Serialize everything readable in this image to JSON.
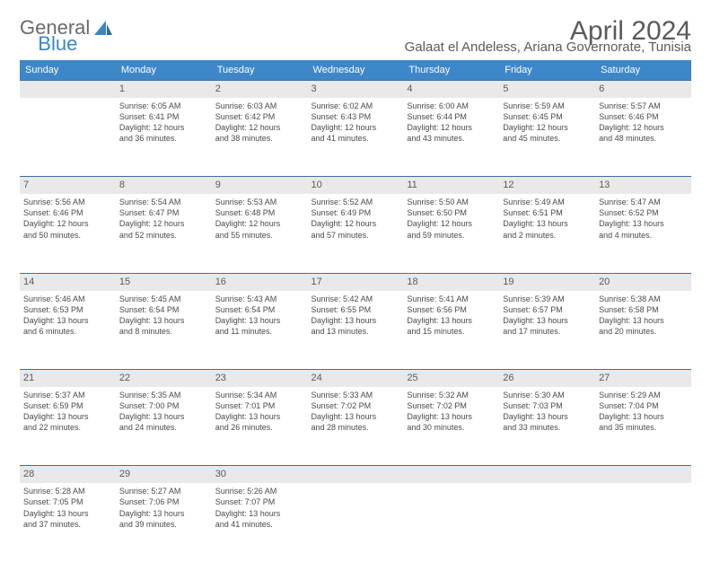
{
  "logo": {
    "text1": "General",
    "text2": "Blue"
  },
  "title": "April 2024",
  "location": "Galaat el Andeless, Ariana Governorate, Tunisia",
  "weekdays": [
    "Sunday",
    "Monday",
    "Tuesday",
    "Wednesday",
    "Thursday",
    "Friday",
    "Saturday"
  ],
  "colors": {
    "header_bg": "#3d87c9",
    "header_text": "#ffffff",
    "daynum_bg": "#e9e9ea",
    "row_border": "#3d6fa5",
    "text": "#4a4a4a",
    "logo_gray": "#6a6a6a",
    "logo_blue": "#3a85c8"
  },
  "weeks": [
    [
      {
        "n": "",
        "sr": "",
        "ss": "",
        "d1": "",
        "d2": ""
      },
      {
        "n": "1",
        "sr": "Sunrise: 6:05 AM",
        "ss": "Sunset: 6:41 PM",
        "d1": "Daylight: 12 hours",
        "d2": "and 36 minutes."
      },
      {
        "n": "2",
        "sr": "Sunrise: 6:03 AM",
        "ss": "Sunset: 6:42 PM",
        "d1": "Daylight: 12 hours",
        "d2": "and 38 minutes."
      },
      {
        "n": "3",
        "sr": "Sunrise: 6:02 AM",
        "ss": "Sunset: 6:43 PM",
        "d1": "Daylight: 12 hours",
        "d2": "and 41 minutes."
      },
      {
        "n": "4",
        "sr": "Sunrise: 6:00 AM",
        "ss": "Sunset: 6:44 PM",
        "d1": "Daylight: 12 hours",
        "d2": "and 43 minutes."
      },
      {
        "n": "5",
        "sr": "Sunrise: 5:59 AM",
        "ss": "Sunset: 6:45 PM",
        "d1": "Daylight: 12 hours",
        "d2": "and 45 minutes."
      },
      {
        "n": "6",
        "sr": "Sunrise: 5:57 AM",
        "ss": "Sunset: 6:46 PM",
        "d1": "Daylight: 12 hours",
        "d2": "and 48 minutes."
      }
    ],
    [
      {
        "n": "7",
        "sr": "Sunrise: 5:56 AM",
        "ss": "Sunset: 6:46 PM",
        "d1": "Daylight: 12 hours",
        "d2": "and 50 minutes."
      },
      {
        "n": "8",
        "sr": "Sunrise: 5:54 AM",
        "ss": "Sunset: 6:47 PM",
        "d1": "Daylight: 12 hours",
        "d2": "and 52 minutes."
      },
      {
        "n": "9",
        "sr": "Sunrise: 5:53 AM",
        "ss": "Sunset: 6:48 PM",
        "d1": "Daylight: 12 hours",
        "d2": "and 55 minutes."
      },
      {
        "n": "10",
        "sr": "Sunrise: 5:52 AM",
        "ss": "Sunset: 6:49 PM",
        "d1": "Daylight: 12 hours",
        "d2": "and 57 minutes."
      },
      {
        "n": "11",
        "sr": "Sunrise: 5:50 AM",
        "ss": "Sunset: 6:50 PM",
        "d1": "Daylight: 12 hours",
        "d2": "and 59 minutes."
      },
      {
        "n": "12",
        "sr": "Sunrise: 5:49 AM",
        "ss": "Sunset: 6:51 PM",
        "d1": "Daylight: 13 hours",
        "d2": "and 2 minutes."
      },
      {
        "n": "13",
        "sr": "Sunrise: 5:47 AM",
        "ss": "Sunset: 6:52 PM",
        "d1": "Daylight: 13 hours",
        "d2": "and 4 minutes."
      }
    ],
    [
      {
        "n": "14",
        "sr": "Sunrise: 5:46 AM",
        "ss": "Sunset: 6:53 PM",
        "d1": "Daylight: 13 hours",
        "d2": "and 6 minutes."
      },
      {
        "n": "15",
        "sr": "Sunrise: 5:45 AM",
        "ss": "Sunset: 6:54 PM",
        "d1": "Daylight: 13 hours",
        "d2": "and 8 minutes."
      },
      {
        "n": "16",
        "sr": "Sunrise: 5:43 AM",
        "ss": "Sunset: 6:54 PM",
        "d1": "Daylight: 13 hours",
        "d2": "and 11 minutes."
      },
      {
        "n": "17",
        "sr": "Sunrise: 5:42 AM",
        "ss": "Sunset: 6:55 PM",
        "d1": "Daylight: 13 hours",
        "d2": "and 13 minutes."
      },
      {
        "n": "18",
        "sr": "Sunrise: 5:41 AM",
        "ss": "Sunset: 6:56 PM",
        "d1": "Daylight: 13 hours",
        "d2": "and 15 minutes."
      },
      {
        "n": "19",
        "sr": "Sunrise: 5:39 AM",
        "ss": "Sunset: 6:57 PM",
        "d1": "Daylight: 13 hours",
        "d2": "and 17 minutes."
      },
      {
        "n": "20",
        "sr": "Sunrise: 5:38 AM",
        "ss": "Sunset: 6:58 PM",
        "d1": "Daylight: 13 hours",
        "d2": "and 20 minutes."
      }
    ],
    [
      {
        "n": "21",
        "sr": "Sunrise: 5:37 AM",
        "ss": "Sunset: 6:59 PM",
        "d1": "Daylight: 13 hours",
        "d2": "and 22 minutes."
      },
      {
        "n": "22",
        "sr": "Sunrise: 5:35 AM",
        "ss": "Sunset: 7:00 PM",
        "d1": "Daylight: 13 hours",
        "d2": "and 24 minutes."
      },
      {
        "n": "23",
        "sr": "Sunrise: 5:34 AM",
        "ss": "Sunset: 7:01 PM",
        "d1": "Daylight: 13 hours",
        "d2": "and 26 minutes."
      },
      {
        "n": "24",
        "sr": "Sunrise: 5:33 AM",
        "ss": "Sunset: 7:02 PM",
        "d1": "Daylight: 13 hours",
        "d2": "and 28 minutes."
      },
      {
        "n": "25",
        "sr": "Sunrise: 5:32 AM",
        "ss": "Sunset: 7:02 PM",
        "d1": "Daylight: 13 hours",
        "d2": "and 30 minutes."
      },
      {
        "n": "26",
        "sr": "Sunrise: 5:30 AM",
        "ss": "Sunset: 7:03 PM",
        "d1": "Daylight: 13 hours",
        "d2": "and 33 minutes."
      },
      {
        "n": "27",
        "sr": "Sunrise: 5:29 AM",
        "ss": "Sunset: 7:04 PM",
        "d1": "Daylight: 13 hours",
        "d2": "and 35 minutes."
      }
    ],
    [
      {
        "n": "28",
        "sr": "Sunrise: 5:28 AM",
        "ss": "Sunset: 7:05 PM",
        "d1": "Daylight: 13 hours",
        "d2": "and 37 minutes."
      },
      {
        "n": "29",
        "sr": "Sunrise: 5:27 AM",
        "ss": "Sunset: 7:06 PM",
        "d1": "Daylight: 13 hours",
        "d2": "and 39 minutes."
      },
      {
        "n": "30",
        "sr": "Sunrise: 5:26 AM",
        "ss": "Sunset: 7:07 PM",
        "d1": "Daylight: 13 hours",
        "d2": "and 41 minutes."
      },
      {
        "n": "",
        "sr": "",
        "ss": "",
        "d1": "",
        "d2": ""
      },
      {
        "n": "",
        "sr": "",
        "ss": "",
        "d1": "",
        "d2": ""
      },
      {
        "n": "",
        "sr": "",
        "ss": "",
        "d1": "",
        "d2": ""
      },
      {
        "n": "",
        "sr": "",
        "ss": "",
        "d1": "",
        "d2": ""
      }
    ]
  ]
}
